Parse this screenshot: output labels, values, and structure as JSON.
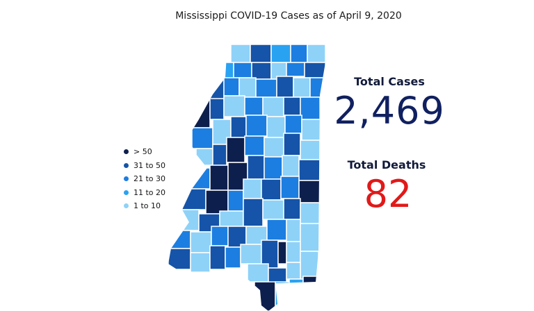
{
  "title": "Mississippi COVID-19 Cases as of April 9, 2020",
  "stats": {
    "cases_label": "Total Cases",
    "cases_value": "2,469",
    "deaths_label": "Total Deaths",
    "deaths_value": "82"
  },
  "legend": [
    {
      "label": "> 50",
      "color": "#0d1f4d"
    },
    {
      "label": "31 to 50",
      "color": "#1554a8"
    },
    {
      "label": "21 to 30",
      "color": "#1c7ee0"
    },
    {
      "label": "11 to 20",
      "color": "#29a2f2"
    },
    {
      "label": "1 to 10",
      "color": "#8ed2f8"
    }
  ],
  "colors": {
    "cases_text": "#102060",
    "deaths_text": "#e11919",
    "county_border": "#ffffff",
    "unreported_fill": "#ffffff"
  }
}
